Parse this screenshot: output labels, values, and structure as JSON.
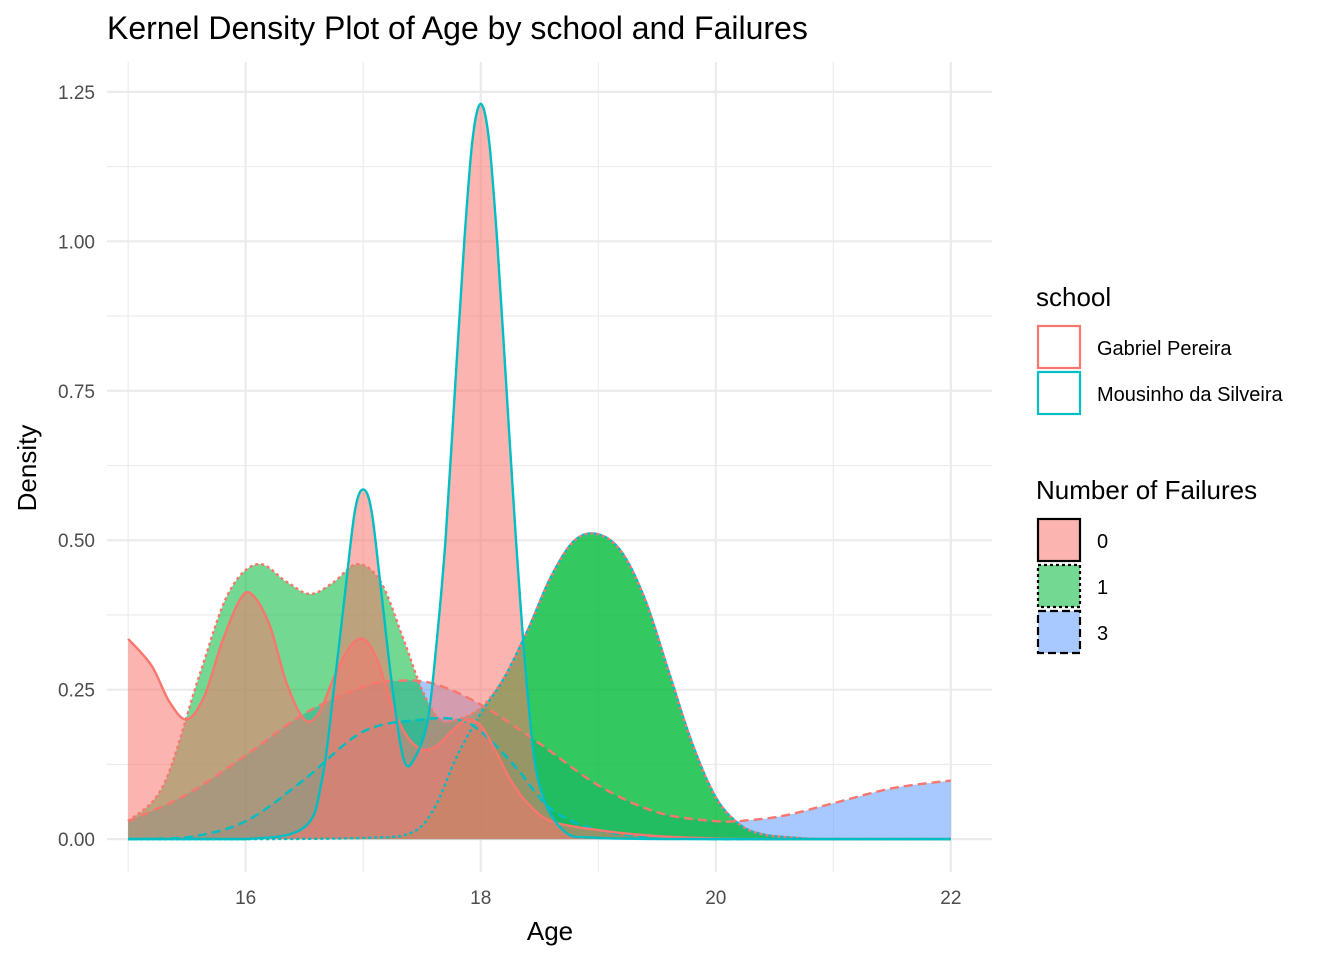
{
  "chart_data": {
    "type": "area",
    "title": "Kernel Density Plot of Age by school and Failures",
    "xlabel": "Age",
    "ylabel": "Density",
    "xlim": [
      14.82,
      22.35
    ],
    "ylim": [
      -0.055,
      1.3
    ],
    "x_ticks": [
      16,
      18,
      20,
      22
    ],
    "x_tick_labels": [
      "16",
      "18",
      "20",
      "22"
    ],
    "y_ticks": [
      0,
      0.25,
      0.5,
      0.75,
      1.0,
      1.25
    ],
    "y_tick_labels": [
      "0.00",
      "0.25",
      "0.50",
      "0.75",
      "1.00",
      "1.25"
    ],
    "grid": true,
    "legend_position": "right",
    "legends": [
      {
        "title": "school",
        "kind": "color",
        "entries": [
          {
            "label": "Gabriel Pereira",
            "color": "#F8766D"
          },
          {
            "label": "Mousinho da Silveira",
            "color": "#00BFC4"
          }
        ]
      },
      {
        "title": "Number of Failures",
        "kind": "fill",
        "entries": [
          {
            "label": "0",
            "fill": "#F8766D",
            "linetype": "solid"
          },
          {
            "label": "1",
            "fill": "#00BA38",
            "linetype": "dotted"
          },
          {
            "label": "3",
            "fill": "#619CFF",
            "linetype": "dashed"
          }
        ]
      }
    ],
    "series": [
      {
        "school": "Gabriel Pereira",
        "failures": "3",
        "x": [
          15,
          15.5,
          16,
          16.5,
          17,
          17.3,
          17.6,
          18,
          18.5,
          19,
          19.5,
          20,
          20.3,
          20.6,
          21,
          21.5,
          22
        ],
        "y": [
          0.03,
          0.075,
          0.14,
          0.21,
          0.255,
          0.265,
          0.26,
          0.225,
          0.16,
          0.09,
          0.045,
          0.03,
          0.032,
          0.04,
          0.06,
          0.085,
          0.098
        ]
      },
      {
        "school": "Mousinho da Silveira",
        "failures": "3",
        "x": [
          15,
          15.5,
          16,
          16.5,
          17,
          17.5,
          17.8,
          18,
          18.3,
          18.6,
          19,
          19.5,
          20,
          20.5,
          21,
          22
        ],
        "y": [
          0,
          0.003,
          0.03,
          0.1,
          0.18,
          0.2,
          0.2,
          0.18,
          0.12,
          0.05,
          0.015,
          0.003,
          0,
          0,
          0,
          0
        ]
      },
      {
        "school": "Gabriel Pereira",
        "failures": "1",
        "x": [
          15,
          15.3,
          15.6,
          15.85,
          16.1,
          16.35,
          16.55,
          16.75,
          16.95,
          17.15,
          17.35,
          17.5,
          17.65,
          17.8,
          18,
          18.2,
          18.4,
          18.6,
          18.8,
          19,
          19.2,
          19.4,
          19.6,
          19.8,
          20,
          20.2,
          20.4,
          20.7,
          21,
          22
        ],
        "y": [
          0.03,
          0.09,
          0.27,
          0.41,
          0.46,
          0.43,
          0.41,
          0.43,
          0.46,
          0.43,
          0.33,
          0.25,
          0.2,
          0.2,
          0.22,
          0.27,
          0.35,
          0.44,
          0.5,
          0.51,
          0.48,
          0.4,
          0.28,
          0.16,
          0.07,
          0.025,
          0.008,
          0.002,
          0,
          0
        ]
      },
      {
        "school": "Mousinho da Silveira",
        "failures": "1",
        "x": [
          15,
          16,
          17,
          17.4,
          17.6,
          17.8,
          18,
          18.2,
          18.4,
          18.6,
          18.8,
          19,
          19.2,
          19.4,
          19.6,
          19.8,
          20,
          20.2,
          20.4,
          20.7,
          21,
          22
        ],
        "y": [
          0,
          0,
          0.002,
          0.01,
          0.05,
          0.14,
          0.21,
          0.27,
          0.35,
          0.44,
          0.5,
          0.51,
          0.48,
          0.4,
          0.28,
          0.16,
          0.07,
          0.025,
          0.008,
          0.002,
          0,
          0
        ]
      },
      {
        "school": "Gabriel Pereira",
        "failures": "0",
        "x": [
          15,
          15.2,
          15.35,
          15.5,
          15.65,
          15.8,
          15.95,
          16.05,
          16.2,
          16.35,
          16.5,
          16.62,
          16.75,
          16.88,
          17,
          17.12,
          17.25,
          17.38,
          17.5,
          17.62,
          17.75,
          17.88,
          18,
          18.12,
          18.25,
          18.4,
          18.6,
          19,
          19.5,
          20,
          20.5,
          21,
          22
        ],
        "y": [
          0.335,
          0.29,
          0.23,
          0.2,
          0.24,
          0.33,
          0.4,
          0.41,
          0.36,
          0.26,
          0.2,
          0.21,
          0.27,
          0.32,
          0.335,
          0.3,
          0.22,
          0.17,
          0.15,
          0.155,
          0.18,
          0.2,
          0.19,
          0.15,
          0.1,
          0.06,
          0.03,
          0.015,
          0.005,
          0.001,
          0,
          0,
          0
        ]
      },
      {
        "school": "Mousinho da Silveira",
        "failures": "0",
        "x": [
          15,
          16,
          16.5,
          16.65,
          16.75,
          16.85,
          16.93,
          17,
          17.07,
          17.15,
          17.25,
          17.35,
          17.45,
          17.55,
          17.62,
          17.7,
          17.78,
          17.86,
          17.93,
          18,
          18.07,
          18.14,
          18.22,
          18.3,
          18.4,
          18.5,
          18.7,
          19,
          20,
          22
        ],
        "y": [
          0,
          0,
          0.02,
          0.1,
          0.25,
          0.42,
          0.55,
          0.585,
          0.55,
          0.42,
          0.25,
          0.13,
          0.14,
          0.2,
          0.32,
          0.5,
          0.75,
          1.0,
          1.17,
          1.23,
          1.17,
          1.0,
          0.75,
          0.5,
          0.24,
          0.09,
          0.015,
          0.002,
          0,
          0
        ]
      }
    ]
  }
}
